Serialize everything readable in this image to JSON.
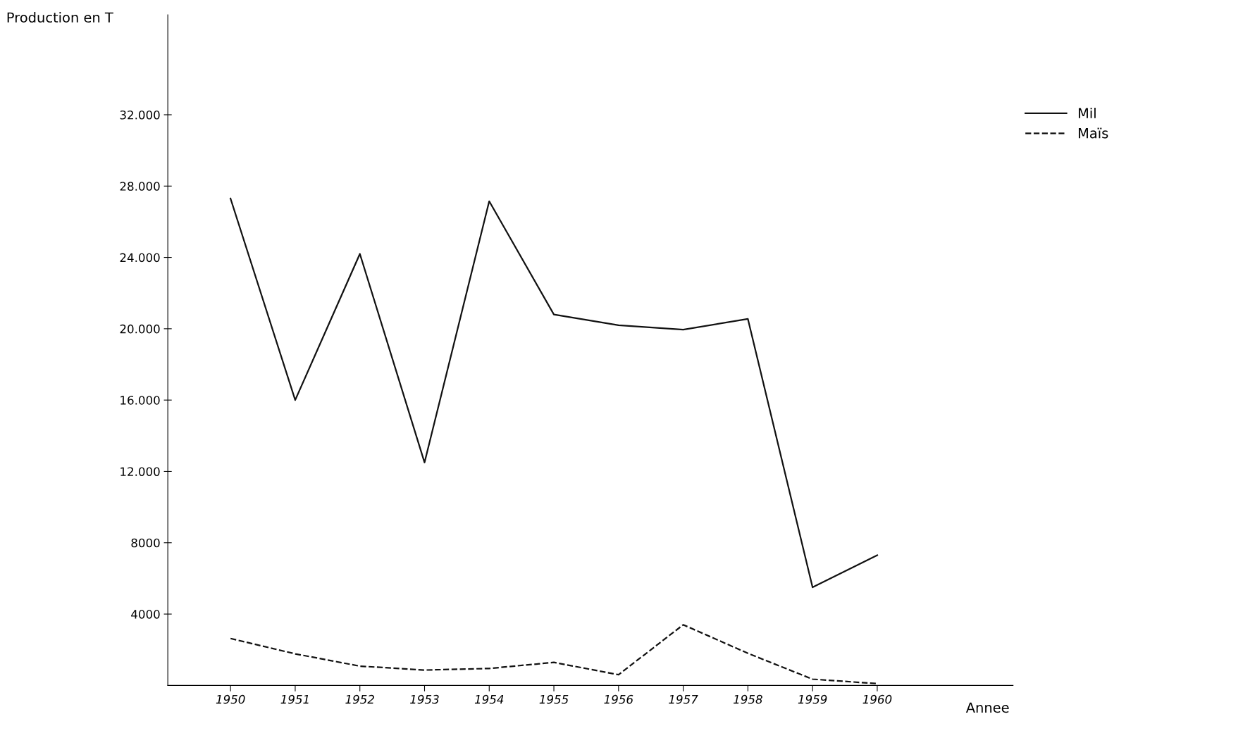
{
  "chart_data": {
    "type": "line",
    "ylabel": "Production en T",
    "xlabel": "Annee",
    "categories": [
      "1950",
      "1951",
      "1952",
      "1953",
      "1954",
      "1955",
      "1956",
      "1957",
      "1958",
      "1959",
      "1960"
    ],
    "series": [
      {
        "name": "Mil",
        "color": "#111111",
        "line_style": "solid",
        "values": [
          27300,
          16000,
          24200,
          12500,
          27150,
          20800,
          20200,
          19950,
          20550,
          5500,
          7300
        ]
      },
      {
        "name": "Maïs",
        "color": "#111111",
        "line_style": "dashed",
        "values": [
          2630,
          1770,
          1080,
          860,
          950,
          1290,
          600,
          3400,
          1800,
          350,
          100
        ]
      }
    ],
    "ylim": [
      0,
      37600
    ],
    "yticks": [
      {
        "value": 4000,
        "label": "4000"
      },
      {
        "value": 8000,
        "label": "8000"
      },
      {
        "value": 12000,
        "label": "12.000"
      },
      {
        "value": 16000,
        "label": "16.000"
      },
      {
        "value": 20000,
        "label": "20.000"
      },
      {
        "value": 24000,
        "label": "24.000"
      },
      {
        "value": 28000,
        "label": "28.000"
      },
      {
        "value": 32000,
        "label": "32.000"
      }
    ],
    "grid": false,
    "legend": "top right",
    "marker": "none"
  }
}
